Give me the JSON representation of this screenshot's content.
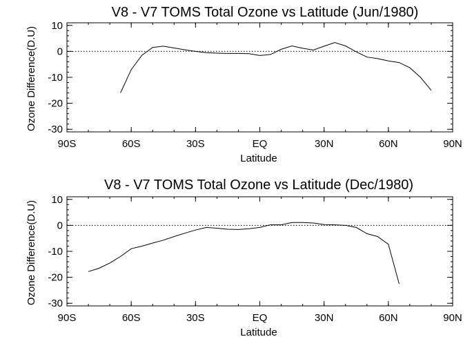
{
  "chart_data": [
    {
      "type": "line",
      "title": "V8 - V7 TOMS Total Ozone vs Latitude (Jun/1980)",
      "xlabel": "Latitude",
      "ylabel": "Ozone Difference(D.U)",
      "xlim": [
        -90,
        90
      ],
      "ylim": [
        -31,
        11
      ],
      "xticks": [
        -90,
        -60,
        -30,
        0,
        30,
        60,
        90
      ],
      "xtick_labels": [
        "90S",
        "60S",
        "30S",
        "EQ",
        "30N",
        "60N",
        "90N"
      ],
      "yticks": [
        -30,
        -20,
        -10,
        0,
        10
      ],
      "ytick_labels": [
        "-30",
        "-20",
        "-10",
        "0",
        "10"
      ],
      "reference_line": {
        "y": 0,
        "style": "dotted"
      },
      "grid": false,
      "series": [
        {
          "x": [
            -65,
            -60,
            -55,
            -50,
            -45,
            -40,
            -35,
            -30,
            -25,
            -20,
            -15,
            -10,
            -5,
            0,
            5,
            10,
            15,
            20,
            25,
            30,
            35,
            40,
            45,
            50,
            55,
            60,
            65,
            70,
            75,
            80
          ],
          "y": [
            -16,
            -7,
            -1.5,
            1.5,
            2,
            1.3,
            0.6,
            0,
            -0.5,
            -0.7,
            -0.8,
            -0.8,
            -0.9,
            -1.6,
            -1.2,
            0.8,
            2.1,
            1.2,
            0.5,
            2,
            3.4,
            2.1,
            -0.2,
            -2.2,
            -2.8,
            -3.7,
            -4.3,
            -6.3,
            -10,
            -15
          ]
        }
      ]
    },
    {
      "type": "line",
      "title": "V8 - V7 TOMS Total Ozone vs Latitude (Dec/1980)",
      "xlabel": "Latitude",
      "ylabel": "Ozone Difference(D.U)",
      "xlim": [
        -90,
        90
      ],
      "ylim": [
        -31,
        11
      ],
      "xticks": [
        -90,
        -60,
        -30,
        0,
        30,
        60,
        90
      ],
      "xtick_labels": [
        "90S",
        "60S",
        "30S",
        "EQ",
        "30N",
        "60N",
        "90N"
      ],
      "yticks": [
        -30,
        -20,
        -10,
        0,
        10
      ],
      "ytick_labels": [
        "-30",
        "-20",
        "-10",
        "0",
        "10"
      ],
      "reference_line": {
        "y": 0,
        "style": "dotted"
      },
      "grid": false,
      "series": [
        {
          "x": [
            -80,
            -75,
            -70,
            -65,
            -60,
            -55,
            -50,
            -45,
            -40,
            -35,
            -30,
            -25,
            -20,
            -15,
            -10,
            -5,
            0,
            5,
            10,
            15,
            20,
            25,
            30,
            35,
            40,
            45,
            50,
            55,
            60,
            65
          ],
          "y": [
            -17.8,
            -16.5,
            -14.5,
            -12,
            -9,
            -8,
            -6.8,
            -5.7,
            -4.3,
            -3,
            -1.8,
            -0.8,
            -1.1,
            -1.5,
            -1.6,
            -1.3,
            -0.8,
            0.2,
            0.2,
            1.1,
            1.1,
            0.9,
            0.3,
            0.2,
            0,
            -0.8,
            -3.2,
            -4.3,
            -7.3,
            -22.5
          ]
        }
      ]
    }
  ]
}
